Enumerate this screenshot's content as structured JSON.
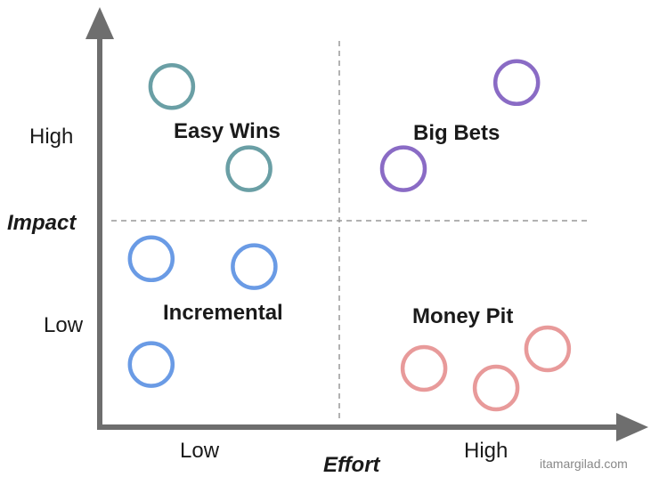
{
  "axes": {
    "y_title": "Impact",
    "x_title": "Effort",
    "y_high": "High",
    "y_low": "Low",
    "x_low": "Low",
    "x_high": "High"
  },
  "quadrants": {
    "top_left": "Easy Wins",
    "top_right": "Big Bets",
    "bottom_left": "Incremental",
    "bottom_right": "Money Pit"
  },
  "colors": {
    "easy_wins": "#6a9fa5",
    "big_bets": "#8a6bc5",
    "incremental": "#6a9be5",
    "money_pit": "#e89a9a",
    "axis": "#6e6e6e",
    "divider": "#999999"
  },
  "items": [
    {
      "group": "easy_wins",
      "effort": 0.14,
      "impact": 0.87
    },
    {
      "group": "easy_wins",
      "effort": 0.29,
      "impact": 0.66
    },
    {
      "group": "big_bets",
      "effort": 0.81,
      "impact": 0.88
    },
    {
      "group": "big_bets",
      "effort": 0.59,
      "impact": 0.66
    },
    {
      "group": "incremental",
      "effort": 0.1,
      "impact": 0.43
    },
    {
      "group": "incremental",
      "effort": 0.3,
      "impact": 0.41
    },
    {
      "group": "incremental",
      "effort": 0.1,
      "impact": 0.16
    },
    {
      "group": "money_pit",
      "effort": 0.63,
      "impact": 0.15
    },
    {
      "group": "money_pit",
      "effort": 0.77,
      "impact": 0.1
    },
    {
      "group": "money_pit",
      "effort": 0.87,
      "impact": 0.2
    }
  ],
  "credit": "itamargilad.com"
}
